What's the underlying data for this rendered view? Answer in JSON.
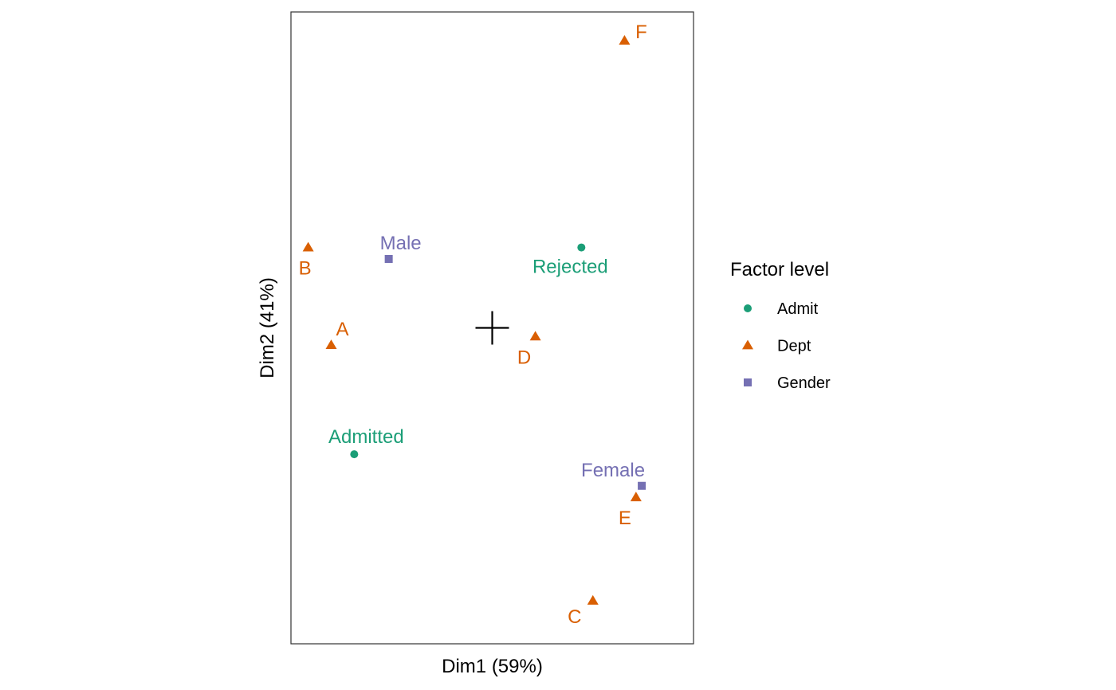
{
  "chart_data": {
    "type": "scatter",
    "title": "",
    "xlabel": "Dim1 (59%)",
    "ylabel": "Dim2 (41%)",
    "xlim": [
      -0.7,
      0.7
    ],
    "ylim": [
      -1.1,
      1.1
    ],
    "grid": false,
    "axis_ticks": false,
    "origin_marker": true,
    "legend": {
      "title": "Factor level",
      "position": "right"
    },
    "series": [
      {
        "name": "Admit",
        "shape": "circle",
        "color": "#1B9E77",
        "points": [
          {
            "label": "Admitted",
            "x": -0.48,
            "y": -0.44
          },
          {
            "label": "Rejected",
            "x": 0.31,
            "y": 0.28
          }
        ]
      },
      {
        "name": "Dept",
        "shape": "triangle",
        "color": "#D95F02",
        "points": [
          {
            "label": "A",
            "x": -0.56,
            "y": -0.06
          },
          {
            "label": "B",
            "x": -0.64,
            "y": 0.28
          },
          {
            "label": "C",
            "x": 0.35,
            "y": -0.95
          },
          {
            "label": "D",
            "x": 0.15,
            "y": -0.03
          },
          {
            "label": "E",
            "x": 0.5,
            "y": -0.59
          },
          {
            "label": "F",
            "x": 0.46,
            "y": 1.0
          }
        ]
      },
      {
        "name": "Gender",
        "shape": "square",
        "color": "#7570B3",
        "points": [
          {
            "label": "Male",
            "x": -0.36,
            "y": 0.24
          },
          {
            "label": "Female",
            "x": 0.52,
            "y": -0.55
          }
        ]
      }
    ]
  }
}
